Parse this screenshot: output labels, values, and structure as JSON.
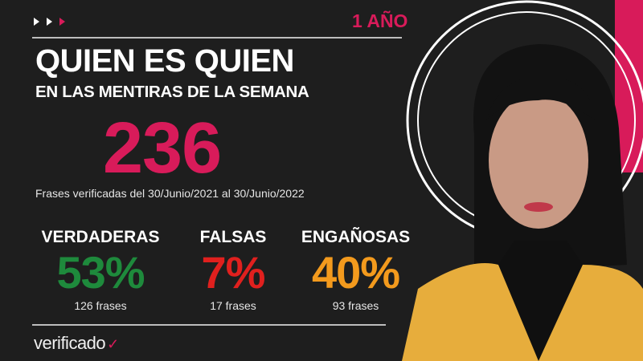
{
  "header": {
    "badge": "1 AÑO"
  },
  "title": {
    "main": "QUIEN ES QUIEN",
    "sub": "EN LAS MENTIRAS DE LA SEMANA"
  },
  "total": {
    "value": "236",
    "caption": "Frases verificadas del 30/Junio/2021 al 30/Junio/2022"
  },
  "stats": [
    {
      "label": "VERDADERAS",
      "percent": "53%",
      "count": "126 frases",
      "color": "#1e8a3c"
    },
    {
      "label": "FALSAS",
      "percent": "7%",
      "count": "17 frases",
      "color": "#e0201e"
    },
    {
      "label": "ENGAÑOSAS",
      "percent": "40%",
      "count": "93 frases",
      "color": "#f39a1d"
    }
  ],
  "footer": {
    "logo": "verificado"
  },
  "colors": {
    "accent": "#d81b5a",
    "background": "#1e1e1e"
  }
}
